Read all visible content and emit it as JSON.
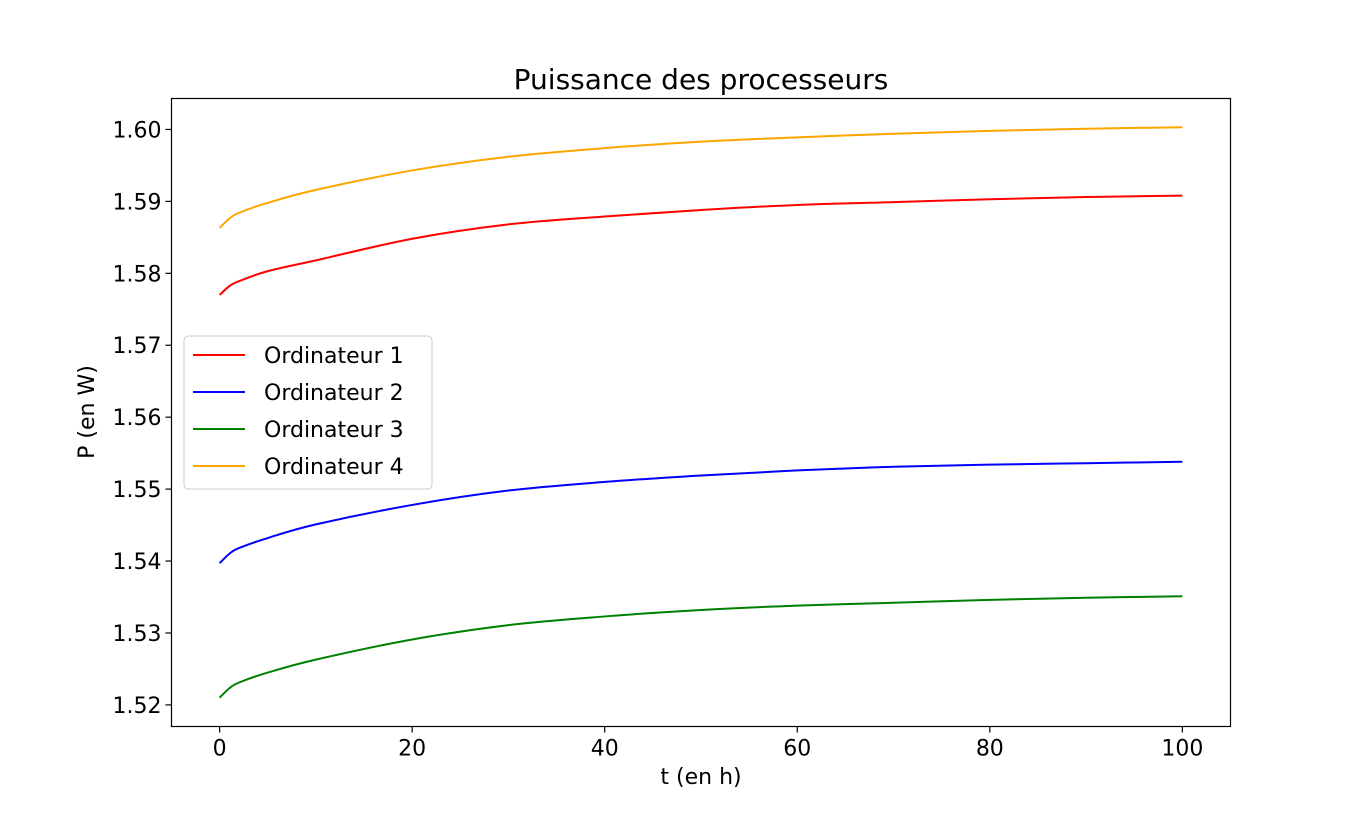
{
  "chart_data": {
    "type": "line",
    "title": "Puissance des processeurs",
    "xlabel": "t (en h)",
    "ylabel": "P (en W)",
    "xlim": [
      -5,
      105
    ],
    "ylim": [
      1.517,
      1.6043
    ],
    "xticks": [
      0,
      20,
      40,
      60,
      80,
      100
    ],
    "xtick_labels": [
      "0",
      "20",
      "40",
      "60",
      "80",
      "100"
    ],
    "yticks": [
      1.52,
      1.53,
      1.54,
      1.55,
      1.56,
      1.57,
      1.58,
      1.59,
      1.6
    ],
    "ytick_labels": [
      "1.52",
      "1.53",
      "1.54",
      "1.55",
      "1.56",
      "1.57",
      "1.58",
      "1.59",
      "1.60"
    ],
    "grid": false,
    "legend_position": "center-left",
    "x": [
      0,
      1,
      2,
      5,
      10,
      20,
      30,
      40,
      50,
      60,
      70,
      80,
      90,
      100
    ],
    "series": [
      {
        "name": "Ordinateur 1",
        "color": "#ff0000",
        "values": [
          1.577,
          1.5782,
          1.5789,
          1.5803,
          1.5818,
          1.5848,
          1.5868,
          1.5879,
          1.5888,
          1.5895,
          1.5899,
          1.5903,
          1.5906,
          1.5908
        ]
      },
      {
        "name": "Ordinateur 2",
        "color": "#0000ff",
        "values": [
          1.5397,
          1.541,
          1.5418,
          1.5432,
          1.5451,
          1.5478,
          1.5498,
          1.551,
          1.5519,
          1.5526,
          1.5531,
          1.5534,
          1.5536,
          1.5538
        ]
      },
      {
        "name": "Ordinateur 3",
        "color": "#008000",
        "values": [
          1.521,
          1.5223,
          1.5231,
          1.5245,
          1.5263,
          1.5291,
          1.5311,
          1.5323,
          1.5332,
          1.5338,
          1.5342,
          1.5346,
          1.5349,
          1.5351
        ]
      },
      {
        "name": "Ordinateur 4",
        "color": "#ffa500",
        "values": [
          1.5863,
          1.5876,
          1.5884,
          1.5898,
          1.5916,
          1.5943,
          1.5962,
          1.5974,
          1.5983,
          1.5989,
          1.5994,
          1.5998,
          1.6001,
          1.6003
        ]
      }
    ]
  }
}
